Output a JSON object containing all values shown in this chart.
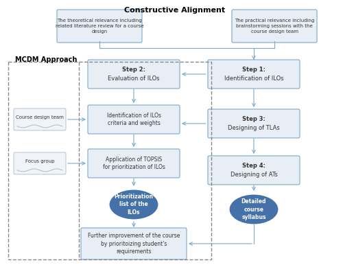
{
  "title": "Constructive Alignment",
  "mcdm_label": "MCDM Approach",
  "bg_color": "#ffffff",
  "box_fill": "#e8eef5",
  "box_edge": "#7ba7c9",
  "ellipse_fill": "#4472a8",
  "ellipse_text_color": "#ffffff",
  "arrow_color": "#7ba7c9",
  "dashed_box_color": "#888888",
  "top_box1_text": "The theoretical relevance including\nrelated literature review for a course\ndesign",
  "top_box2_text": "The practical relevance including\nbrainstorming sessions with the\ncourse design team",
  "step1_text": "Step 1:\nIdentification of ILOs",
  "step2_text": "Step 2:\nEvaluation of ILOs",
  "step3_text": "Step 3:\nDesigning of TLAs",
  "step4_text": "Step 4:\nDesigning of ATs",
  "id_ilos_text": "Identification of ILOs\ncriteria and weights",
  "app_topsis_text": "Application of TOPSIS\nfor prioritization of ILOs",
  "prior_text": "Prioritization\nlist of the\nILOs",
  "detailed_text": "Detailed\ncourse\nsyllabus",
  "further_text": "Further improvement of the course\nby prioritoizing student's\nrequirements",
  "cdt_text": "Course design team",
  "focus_text": "Focus group"
}
